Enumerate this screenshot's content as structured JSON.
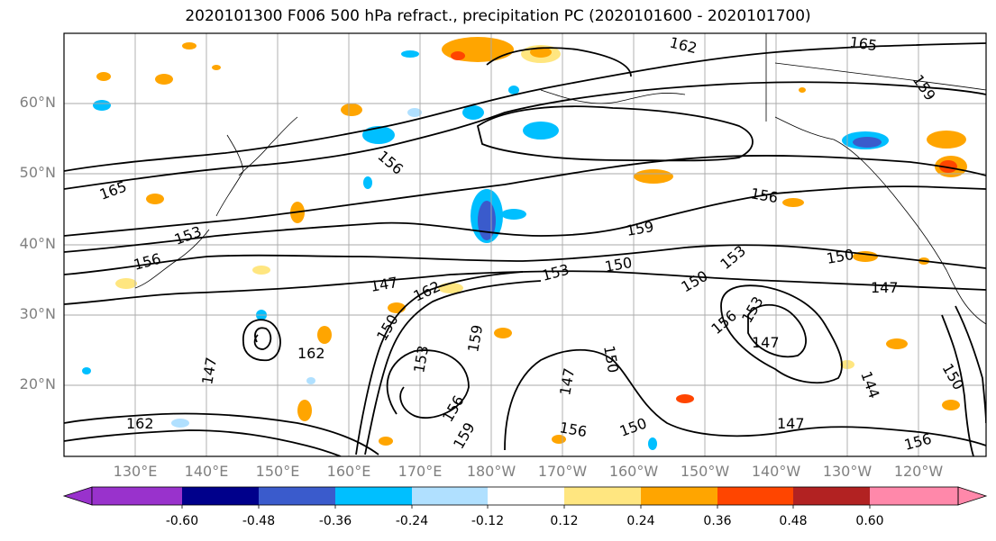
{
  "title": "2020101300 F006 500 hPa refract., precipitation PC (2020101600 - 2020101700)",
  "lat_labels": [
    "60°N",
    "50°N",
    "40°N",
    "30°N",
    "20°N"
  ],
  "lon_labels": [
    "130°E",
    "140°E",
    "150°E",
    "160°E",
    "170°E",
    "180°W",
    "170°W",
    "160°W",
    "150°W",
    "140°W",
    "130°W",
    "120°W"
  ],
  "contour_labels": [
    "162",
    "165",
    "159",
    "165",
    "156",
    "156",
    "159",
    "153",
    "156",
    "150",
    "153",
    "150",
    "147",
    "162",
    "150",
    "153",
    "147",
    "147",
    "156",
    "153",
    "147",
    "144",
    "150",
    "147",
    "162",
    "153",
    "159",
    "150",
    "147",
    "150",
    "156",
    "162",
    "156",
    "159",
    "150",
    "156"
  ],
  "colorbar": {
    "ticks": [
      "-0.60",
      "-0.48",
      "-0.36",
      "-0.24",
      "-0.12",
      "0.12",
      "0.24",
      "0.36",
      "0.48",
      "0.60"
    ],
    "colors": [
      "#9932cc",
      "#00008b",
      "#3a5bcc",
      "#00bfff",
      "#b0e0ff",
      "#ffffff",
      "#ffe680",
      "#ffa500",
      "#ff4500",
      "#b22222",
      "#ff88aa"
    ]
  }
}
